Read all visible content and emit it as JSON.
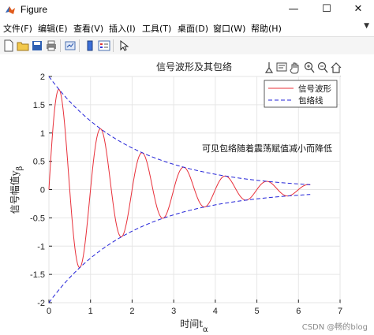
{
  "window": {
    "title": "Figure",
    "minimize": "—",
    "maximize": "☐",
    "close": "✕"
  },
  "menu": {
    "items": [
      {
        "label": "文件(F)"
      },
      {
        "label": "编辑(E)"
      },
      {
        "label": "查看(V)"
      },
      {
        "label": "插入(I)"
      },
      {
        "label": "工具(T)"
      },
      {
        "label": "桌面(D)"
      },
      {
        "label": "窗口(W)"
      },
      {
        "label": "帮助(H)"
      }
    ],
    "overflow_icon": "chevron-down-icon"
  },
  "toolbar": {
    "icons": [
      "new-figure-icon",
      "open-file-icon",
      "save-icon",
      "print-icon",
      "link-plot-icon",
      "colorbar-icon",
      "legend-icon",
      "edit-plot-icon"
    ]
  },
  "axes_toolbar": {
    "icons": [
      "brush-icon",
      "data-tips-icon",
      "pan-icon",
      "zoom-in-icon",
      "zoom-out-icon",
      "home-icon"
    ]
  },
  "chart_data": {
    "type": "line",
    "title": "信号波形及其包络",
    "xlabel_main": "时间t",
    "xlabel_sub": "α",
    "ylabel_main": "信号幅值y",
    "ylabel_sub": "β",
    "xlim": [
      0,
      7
    ],
    "ylim": [
      -2,
      2
    ],
    "xticks": [
      "0",
      "1",
      "2",
      "3",
      "4",
      "5",
      "6",
      "7"
    ],
    "yticks": [
      "-2",
      "-1.5",
      "-1",
      "-0.5",
      "0",
      "0.5",
      "1",
      "1.5",
      "2"
    ],
    "grid": true,
    "legend_position": "top-right",
    "series": [
      {
        "name": "信号波形",
        "color": "#e8303a",
        "style": "solid",
        "function": "2*exp(-0.5*t)*sin(2*pi*t)",
        "t_range": [
          0,
          6.283
        ]
      },
      {
        "name": "包络线",
        "color": "#2323d8",
        "style": "dashed",
        "function": "2*exp(-0.5*t)",
        "t_range": [
          0,
          6.283
        ]
      },
      {
        "name": "",
        "color": "#2323d8",
        "style": "dashed",
        "function": "-2*exp(-0.5*t)",
        "t_range": [
          0,
          6.283
        ]
      }
    ],
    "annotation": "可见包络随着震荡赋值减小而降低"
  },
  "watermark": "CSDN @畅的blog"
}
